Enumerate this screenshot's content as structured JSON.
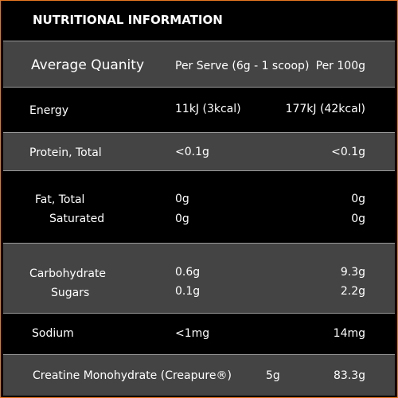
{
  "title": "NUTRITIONAL INFORMATION",
  "header": {
    "label": "Average Quanity",
    "per_serve": "Per Serve (6g - 1 scoop)",
    "per_100g": "Per 100g"
  },
  "rows": {
    "energy": {
      "label": "Energy",
      "serve": "11kJ (3kcal)",
      "per100": "177kJ (42kcal)"
    },
    "protein": {
      "label": "Protein, Total",
      "serve": "<0.1g",
      "per100": "<0.1g"
    },
    "fat": {
      "label": "Fat, Total",
      "serve": "0g",
      "per100": "0g"
    },
    "saturated": {
      "label": "Saturated",
      "serve": "0g",
      "per100": "0g"
    },
    "carbohydrate": {
      "label": "Carbohydrate",
      "serve": "0.6g",
      "per100": "9.3g"
    },
    "sugars": {
      "label": "Sugars",
      "serve": "0.1g",
      "per100": "2.2g"
    },
    "sodium": {
      "label": "Sodium",
      "serve": "<1mg",
      "per100": "14mg"
    },
    "creatine": {
      "label": "Creatine Monohydrate (Creapure®)",
      "serve": "5g",
      "per100": "83.3g"
    }
  },
  "colors": {
    "border": "#e87722",
    "row_grey": "#444444",
    "row_black": "#000000",
    "separator": "#9a9a9a",
    "text": "#ffffff"
  }
}
